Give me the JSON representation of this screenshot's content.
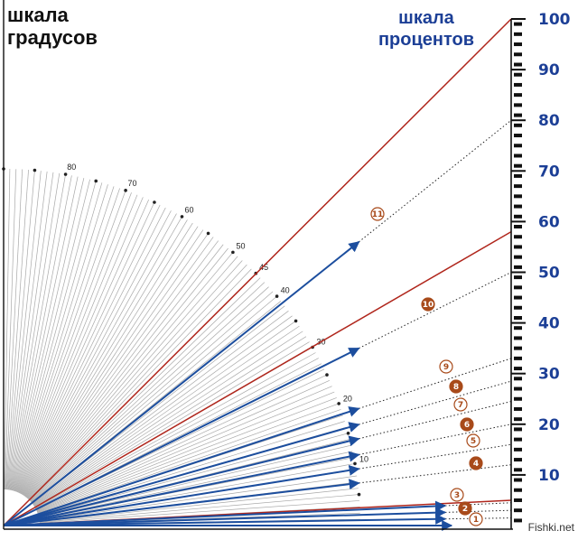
{
  "titles": {
    "degree_scale_line1": "шкала",
    "degree_scale_line2": "градусов",
    "percent_scale_line1": "шкала",
    "percent_scale_line2": "процентов"
  },
  "watermark": "Fishki.net",
  "chart_data": {
    "type": "diagram",
    "description_axis": "percent",
    "percent_scale": {
      "min": 0,
      "max": 100,
      "labels": [
        "10",
        "20",
        "30",
        "40",
        "50",
        "60",
        "70",
        "80",
        "90",
        "100"
      ]
    },
    "degree_labels": [
      {
        "deg": 10,
        "text": "10"
      },
      {
        "deg": 20,
        "text": "20"
      },
      {
        "deg": 30,
        "text": "30"
      },
      {
        "deg": 40,
        "text": "40"
      },
      {
        "deg": 45,
        "text": "45"
      },
      {
        "deg": 50,
        "text": "50"
      },
      {
        "deg": 60,
        "text": "60"
      },
      {
        "deg": 70,
        "text": "70"
      },
      {
        "deg": 80,
        "text": "80"
      }
    ],
    "reference_lines_percent": [
      100,
      58,
      5
    ],
    "slopes": [
      {
        "id": "1",
        "label": "1",
        "percent": 1.5,
        "style": "outline"
      },
      {
        "id": "2",
        "label": "2",
        "percent": 3,
        "style": "filled"
      },
      {
        "id": "3",
        "label": "3",
        "percent": 4.5,
        "style": "outline"
      },
      {
        "id": "4",
        "label": "4",
        "percent": 12,
        "style": "filled"
      },
      {
        "id": "5",
        "label": "5",
        "percent": 16,
        "style": "outline"
      },
      {
        "id": "6",
        "label": "6",
        "percent": 20,
        "style": "filled"
      },
      {
        "id": "7",
        "label": "7",
        "percent": 24.5,
        "style": "outline"
      },
      {
        "id": "8",
        "label": "8",
        "percent": 28.5,
        "style": "filled"
      },
      {
        "id": "9",
        "label": "9",
        "percent": 33,
        "style": "outline"
      },
      {
        "id": "10",
        "label": "10",
        "percent": 50,
        "style": "filled"
      },
      {
        "id": "11",
        "label": "11",
        "percent": 80,
        "style": "outline"
      }
    ],
    "colors": {
      "arrow": "#1c4e9e",
      "reference": "#b0261c",
      "filled_marker": "#a84a1a",
      "outline_marker": "#a84a1a",
      "fan": "#8c8c8c",
      "scale": "#1c3f96"
    }
  }
}
